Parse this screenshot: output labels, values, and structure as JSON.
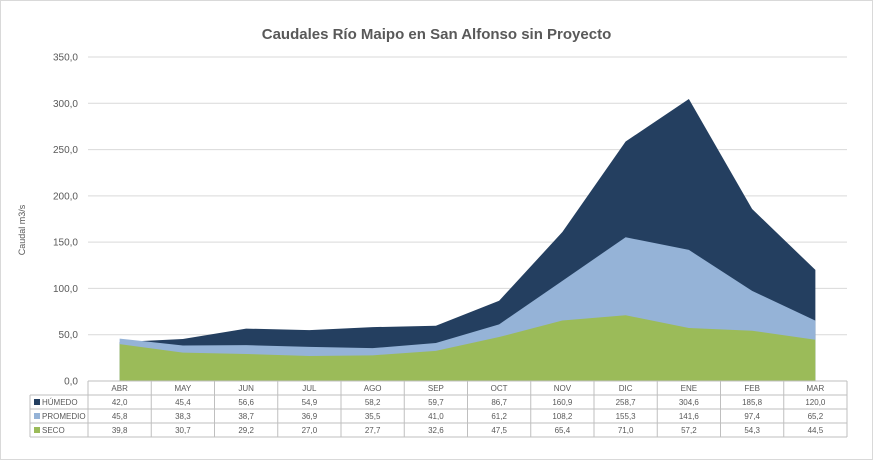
{
  "chart_data": {
    "type": "area",
    "title": "Caudales Río Maipo en San Alfonso sin Proyecto",
    "ylabel": "Caudal m3/s",
    "ylim": [
      0,
      350
    ],
    "yticks": [
      "0,0",
      "50,0",
      "100,0",
      "150,0",
      "200,0",
      "250,0",
      "300,0",
      "350,0"
    ],
    "grid": true,
    "categories": [
      "ABR",
      "MAY",
      "JUN",
      "JUL",
      "AGO",
      "SEP",
      "OCT",
      "NOV",
      "DIC",
      "ENE",
      "FEB",
      "MAR"
    ],
    "series": [
      {
        "name": "HÚMEDO",
        "color": "#243f60",
        "values": [
          42.0,
          45.4,
          56.6,
          54.9,
          58.2,
          59.7,
          86.7,
          160.9,
          258.7,
          304.6,
          185.8,
          120.0
        ],
        "labels": [
          "42,0",
          "45,4",
          "56,6",
          "54,9",
          "58,2",
          "59,7",
          "86,7",
          "160,9",
          "258,7",
          "304,6",
          "185,8",
          "120,0"
        ]
      },
      {
        "name": "PROMEDIO",
        "color": "#95b3d7",
        "values": [
          45.8,
          38.3,
          38.7,
          36.9,
          35.5,
          41.0,
          61.2,
          108.2,
          155.3,
          141.6,
          97.4,
          65.2
        ],
        "labels": [
          "45,8",
          "38,3",
          "38,7",
          "36,9",
          "35,5",
          "41,0",
          "61,2",
          "108,2",
          "155,3",
          "141,6",
          "97,4",
          "65,2"
        ]
      },
      {
        "name": "SECO",
        "color": "#9bbb59",
        "values": [
          39.8,
          30.7,
          29.2,
          27.0,
          27.7,
          32.6,
          47.5,
          65.4,
          71.0,
          57.2,
          54.3,
          44.5
        ],
        "labels": [
          "39,8",
          "30,7",
          "29,2",
          "27,0",
          "27,7",
          "32,6",
          "47,5",
          "65,4",
          "71,0",
          "57,2",
          "54,3",
          "44,5"
        ]
      }
    ]
  }
}
